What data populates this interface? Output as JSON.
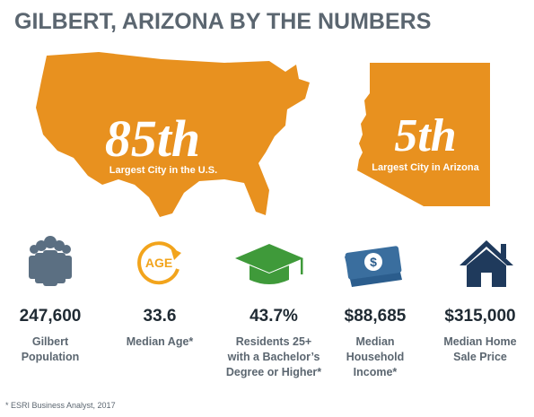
{
  "header": {
    "title": "GILBERT, ARIZONA BY THE NUMBERS"
  },
  "maps": [
    {
      "rank": "85th",
      "caption": "Largest City in the U.S."
    },
    {
      "rank": "5th",
      "caption": "Largest City in Arizona"
    }
  ],
  "stats": [
    {
      "value": "247,600",
      "label_lines": [
        "Gilbert",
        "Population"
      ]
    },
    {
      "icon_text": "AGE",
      "value": "33.6",
      "label_lines": [
        "Median Age*"
      ]
    },
    {
      "value": "43.7%",
      "label_lines": [
        "Residents 25+",
        "with a Bachelor’s",
        "Degree or Higher*"
      ]
    },
    {
      "value": "$88,685",
      "label_lines": [
        "Median",
        "Household",
        "Income*"
      ]
    },
    {
      "value": "$315,000",
      "label_lines": [
        "Median Home",
        "Sale Price"
      ]
    }
  ],
  "footnote": "* ESRI Business Analyst, 2017"
}
